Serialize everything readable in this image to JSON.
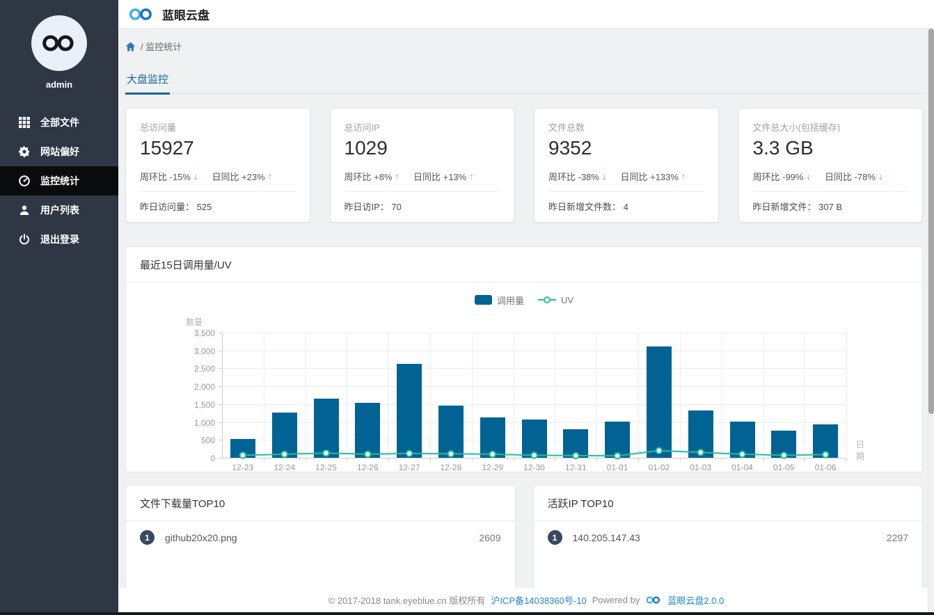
{
  "app": {
    "title": "蓝眼云盘"
  },
  "sidebar": {
    "username": "admin",
    "items": [
      {
        "label": "全部文件",
        "icon": "grid-icon",
        "active": false
      },
      {
        "label": "网站偏好",
        "icon": "gear-icon",
        "active": false
      },
      {
        "label": "监控统计",
        "icon": "dashboard-icon",
        "active": true
      },
      {
        "label": "用户列表",
        "icon": "user-icon",
        "active": false
      },
      {
        "label": "退出登录",
        "icon": "power-icon",
        "active": false
      }
    ]
  },
  "breadcrumb": {
    "path": "/ 监控统计"
  },
  "tabs": [
    {
      "label": "大盘监控",
      "active": true
    }
  ],
  "stat_cards": [
    {
      "label": "总访问量",
      "value": "15927",
      "week_label": "周环比 -15%",
      "week_dir": "down",
      "day_label": "日同比 +23%",
      "day_dir": "up",
      "foot": "昨日访问量： 525"
    },
    {
      "label": "总访问IP",
      "value": "1029",
      "week_label": "周环比 +8%",
      "week_dir": "up",
      "day_label": "日同比 +13%",
      "day_dir": "up",
      "foot": "昨日访IP： 70"
    },
    {
      "label": "文件总数",
      "value": "9352",
      "week_label": "周环比 -38%",
      "week_dir": "down",
      "day_label": "日同比 +133%",
      "day_dir": "up",
      "foot": "昨日新增文件数： 4"
    },
    {
      "label": "文件总大小(包括缓存)",
      "value": "3.3 GB",
      "week_label": "周环比 -99%",
      "week_dir": "down",
      "day_label": "日同比 -78%",
      "day_dir": "down",
      "foot": "昨日新增文件： 307 B"
    }
  ],
  "chart_panel": {
    "title": "最近15日调用量/UV"
  },
  "chart_data": {
    "type": "bar",
    "categories": [
      "12-23",
      "12-24",
      "12-25",
      "12-26",
      "12-27",
      "12-28",
      "12-29",
      "12-30",
      "12-31",
      "01-01",
      "01-02",
      "01-03",
      "01-04",
      "01-05",
      "01-06"
    ],
    "series": [
      {
        "name": "调用量",
        "type": "bar",
        "color": "#006394",
        "values": [
          530,
          1270,
          1650,
          1530,
          2620,
          1460,
          1120,
          1080,
          800,
          1020,
          3120,
          1320,
          1020,
          760,
          940
        ]
      },
      {
        "name": "UV",
        "type": "line",
        "color": "#1fbf99",
        "values": [
          70,
          100,
          130,
          100,
          120,
          110,
          100,
          70,
          60,
          55,
          200,
          150,
          100,
          70,
          90
        ]
      }
    ],
    "title": "最近15日调用量/UV",
    "xlabel": "日期",
    "ylabel": "数量",
    "ylim": [
      0,
      3500
    ],
    "ytick_step": 500,
    "grid": true,
    "legend_position": "top-center"
  },
  "top_lists": [
    {
      "title": "文件下载量TOP10",
      "items": [
        {
          "rank": "1",
          "name": "github20x20.png",
          "value": "2609"
        }
      ]
    },
    {
      "title": "活跃IP TOP10",
      "items": [
        {
          "rank": "1",
          "name": "140.205.147.43",
          "value": "2297"
        }
      ]
    }
  ],
  "footer": {
    "copyright": "© 2017-2018 tank.eyeblue.cn 版权所有",
    "icp": "沪ICP备14038360号-10",
    "powered_by": "Powered by",
    "product": "蓝眼云盘2.0.0"
  },
  "colors": {
    "accent_blue": "#16679f",
    "bar_blue": "#006394",
    "line_teal": "#1fbf99",
    "up_red": "#f5826d",
    "down_green": "#1fbc92",
    "sidebar_bg": "#2f3644",
    "active_item_bg": "#0a0b0d",
    "link_blue": "#1e88c7"
  }
}
